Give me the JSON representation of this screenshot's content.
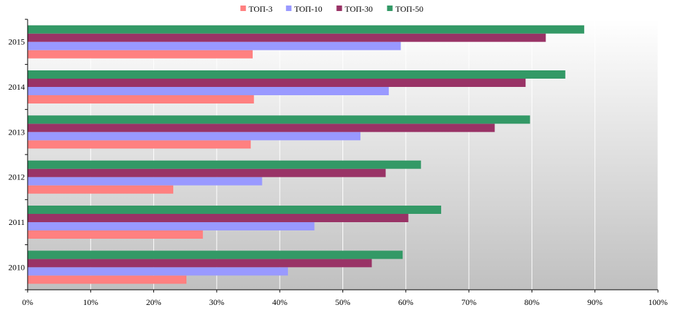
{
  "chart_data": {
    "type": "bar",
    "orientation": "horizontal",
    "categories": [
      "2010",
      "2011",
      "2012",
      "2013",
      "2014",
      "2015"
    ],
    "series": [
      {
        "name": "ТОП-3",
        "color": "#ff8080",
        "values": [
          0.252,
          0.278,
          0.231,
          0.354,
          0.359,
          0.357
        ]
      },
      {
        "name": "ТОП-10",
        "color": "#9999ff",
        "values": [
          0.413,
          0.455,
          0.372,
          0.528,
          0.573,
          0.592
        ]
      },
      {
        "name": "ТОП-30",
        "color": "#993366",
        "values": [
          0.546,
          0.604,
          0.568,
          0.741,
          0.79,
          0.822
        ]
      },
      {
        "name": "ТОП-50",
        "color": "#339966",
        "values": [
          0.595,
          0.656,
          0.624,
          0.797,
          0.853,
          0.883
        ]
      }
    ],
    "xlim": [
      0,
      1
    ],
    "xticks": [
      "0%",
      "10%",
      "20%",
      "30%",
      "40%",
      "50%",
      "60%",
      "70%",
      "80%",
      "90%",
      "100%"
    ],
    "grid": true,
    "legend_position": "top-center",
    "plot_background": "gradient white-to-gray"
  }
}
